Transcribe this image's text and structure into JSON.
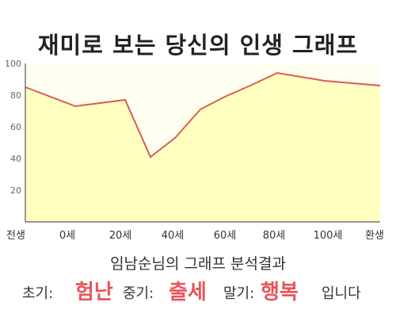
{
  "title": "재미로 보는 당신의 인생 그래프",
  "chart_data": {
    "type": "area",
    "x_labels": [
      "전생",
      "0세",
      "20세",
      "40세",
      "60세",
      "80세",
      "100세",
      "환생"
    ],
    "points": [
      {
        "x": "전생",
        "y": 85
      },
      {
        "x": "0세",
        "y": 73
      },
      {
        "x": "20세",
        "y": 77
      },
      {
        "x": "",
        "y": 41
      },
      {
        "x": "",
        "y": 53
      },
      {
        "x": "",
        "y": 71
      },
      {
        "x": "",
        "y": 79
      },
      {
        "x": "",
        "y": 86
      },
      {
        "x": "80세",
        "y": 94
      },
      {
        "x": "",
        "y": 89
      },
      {
        "x": "환생",
        "y": 86
      }
    ],
    "yticks": [
      20,
      40,
      60,
      80,
      100
    ],
    "ylim": [
      0,
      100
    ],
    "grid": false,
    "colors": {
      "line": "#dc5a5a",
      "fill": "#ffffc0",
      "bg": "#fffff0",
      "axis": "#333333"
    }
  },
  "subtitle": "임남순님의 그래프 분석결과",
  "results": {
    "early_label": "초기:",
    "early_value": "험난",
    "mid_label": "중기:",
    "mid_value": "출세",
    "late_label": "말기:",
    "late_value": "행복",
    "closing": "입니다"
  }
}
